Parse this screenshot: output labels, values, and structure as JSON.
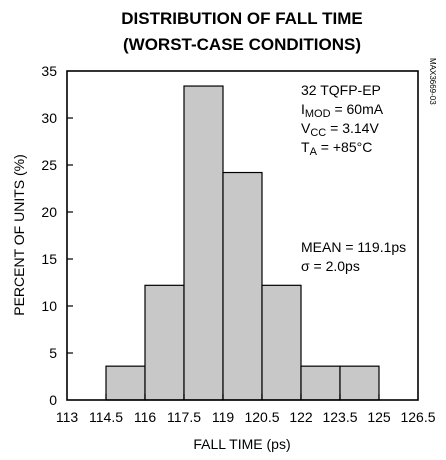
{
  "chart_data": {
    "type": "bar",
    "title": [
      "DISTRIBUTION OF FALL TIME",
      "(WORST-CASE CONDITIONS)"
    ],
    "xlabel": "FALL TIME (ps)",
    "ylabel": "PERCENT OF UNITS (%)",
    "xlim": [
      113,
      126.5
    ],
    "ylim": [
      0,
      35
    ],
    "x_ticks": [
      "113",
      "114.5",
      "116",
      "117.5",
      "119",
      "120.5",
      "122",
      "123.5",
      "125",
      "126.5"
    ],
    "y_ticks": [
      "0",
      "5",
      "10",
      "15",
      "20",
      "25",
      "30",
      "35"
    ],
    "bins": [
      {
        "from": 114.5,
        "to": 116,
        "value": 3.6
      },
      {
        "from": 116,
        "to": 117.5,
        "value": 12.2
      },
      {
        "from": 117.5,
        "to": 119,
        "value": 33.4
      },
      {
        "from": 119,
        "to": 120.5,
        "value": 24.2
      },
      {
        "from": 120.5,
        "to": 122,
        "value": 12.2
      },
      {
        "from": 122,
        "to": 123.5,
        "value": 3.6
      },
      {
        "from": 123.5,
        "to": 125,
        "value": 3.6
      }
    ],
    "grid": false,
    "annotations": {
      "conditions": [
        {
          "main": "32 TQFP-EP"
        },
        {
          "main": "I",
          "sub": "MOD",
          "tail": " = 60mA"
        },
        {
          "main": "V",
          "sub": "CC",
          "tail": " = 3.14V"
        },
        {
          "main": "T",
          "sub": "A",
          "tail": " = +85°C"
        }
      ],
      "stats": [
        {
          "main": "MEAN = 119.1ps"
        },
        {
          "main": "σ = 2.0ps"
        }
      ],
      "part_code": "MAX3669-03"
    }
  }
}
